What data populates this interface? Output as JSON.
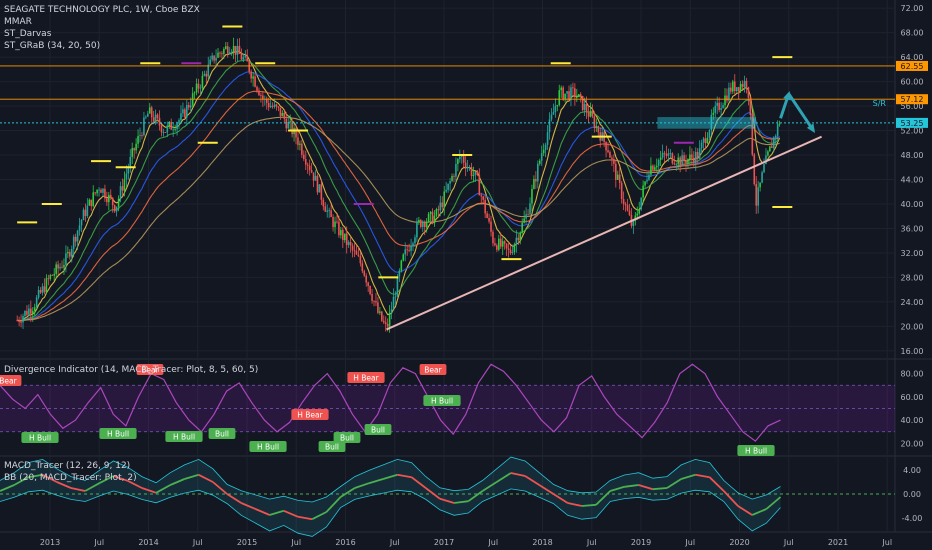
{
  "main_legend": {
    "title": "SEAGATE TECHNOLOGY PLC, 1W, Cboe BZX",
    "ind1": "MMAR",
    "ind2": "ST_Darvas",
    "ind3": "ST_GRaB (34, 20, 50)"
  },
  "div_legend": {
    "title": "Divergence Indicator (14, MACD_Tracer: Plot, 8, 5, 60, 5)"
  },
  "macd_legend": {
    "line1": "MACD_Tracer (12, 26, 9, 12)",
    "line2": "BB (20, MACD_Tracer: Plot, 2)"
  },
  "colors": {
    "background": "#131722",
    "candle_up": "#26a69a",
    "candle_up_bright": "#2ecc40",
    "candle_down": "#ef5350",
    "darvas_box": "#ffeb3b",
    "darvas_purple": "#9c27b0",
    "hline_orange": "#ff9800",
    "hline_teal": "#26c6da",
    "trendline": "#e8b5b5",
    "arrow": "#2fa3b4",
    "div_line": "#ab47bc",
    "bull_label": "#4caf50",
    "bear_label": "#ef5350",
    "macd_zero": "#4caf50"
  },
  "chart_data": [
    {
      "type": "candlestick",
      "name_panel": "price",
      "title": "SEAGATE TECHNOLOGY PLC, 1W, Cboe BZX",
      "x_ticks": [
        "2013",
        "Jul",
        "2014",
        "Jul",
        "2015",
        "Jul",
        "2016",
        "Jul",
        "2017",
        "Jul",
        "2018",
        "Jul",
        "2019",
        "Jul",
        "2020",
        "Jul",
        "2021",
        "Jul"
      ],
      "y_ticks": [
        16,
        20,
        24,
        28,
        32,
        36,
        40,
        44,
        48,
        52,
        56,
        60,
        64,
        68,
        72
      ],
      "ylim": [
        15,
        73
      ],
      "price_path": [
        [
          "2012-09",
          21
        ],
        [
          "2012-11",
          23.5
        ],
        [
          "2013-01",
          28
        ],
        [
          "2013-03",
          31
        ],
        [
          "2013-05",
          38
        ],
        [
          "2013-07",
          43
        ],
        [
          "2013-09",
          39.5
        ],
        [
          "2013-11",
          48
        ],
        [
          "2014-01",
          55
        ],
        [
          "2014-03",
          52
        ],
        [
          "2014-05",
          54
        ],
        [
          "2014-07",
          59
        ],
        [
          "2014-09",
          64
        ],
        [
          "2014-11",
          66
        ],
        [
          "2015-01",
          63
        ],
        [
          "2015-03",
          57
        ],
        [
          "2015-05",
          55
        ],
        [
          "2015-07",
          51
        ],
        [
          "2015-09",
          45
        ],
        [
          "2015-11",
          38
        ],
        [
          "2016-01",
          34
        ],
        [
          "2016-03",
          30
        ],
        [
          "2016-05",
          22
        ],
        [
          "2016-06",
          19.5
        ],
        [
          "2016-08",
          31
        ],
        [
          "2016-10",
          37
        ],
        [
          "2016-12",
          38
        ],
        [
          "2017-01",
          41
        ],
        [
          "2017-03",
          48
        ],
        [
          "2017-04",
          46
        ],
        [
          "2017-05",
          44
        ],
        [
          "2017-07",
          34
        ],
        [
          "2017-09",
          32
        ],
        [
          "2017-11",
          38
        ],
        [
          "2018-01",
          49
        ],
        [
          "2018-03",
          58
        ],
        [
          "2018-05",
          58
        ],
        [
          "2018-07",
          54
        ],
        [
          "2018-09",
          49
        ],
        [
          "2018-11",
          40
        ],
        [
          "2018-12",
          36
        ],
        [
          "2019-02",
          46
        ],
        [
          "2019-04",
          48
        ],
        [
          "2019-06",
          47
        ],
        [
          "2019-08",
          48
        ],
        [
          "2019-10",
          55
        ],
        [
          "2019-12",
          59
        ],
        [
          "2020-02",
          60
        ],
        [
          "2020-03",
          40
        ],
        [
          "2020-04",
          46
        ],
        [
          "2020-06",
          54
        ]
      ],
      "horizontal_levels": {
        "orange_high": 62.55,
        "orange_mid": 57.12,
        "teal": 53.25
      },
      "axis_labels": {
        "orange_high": "62.55",
        "orange_mid": "57.12",
        "teal": "53.25",
        "sr_label": "S/R"
      },
      "trendline": [
        [
          "2016-06",
          19.5
        ],
        [
          "2020-11",
          51
        ]
      ],
      "darvas_levels": [
        [
          "2012-09",
          37
        ],
        [
          "2012-12",
          40
        ],
        [
          "2013-06",
          47
        ],
        [
          "2013-09",
          46
        ],
        [
          "2013-12",
          63
        ],
        [
          "2014-05",
          63
        ],
        [
          "2014-07",
          50
        ],
        [
          "2014-10",
          69
        ],
        [
          "2015-02",
          63
        ],
        [
          "2015-06",
          52
        ],
        [
          "2016-02",
          40
        ],
        [
          "2016-05",
          28
        ],
        [
          "2017-02",
          48
        ],
        [
          "2017-08",
          31
        ],
        [
          "2018-02",
          63
        ],
        [
          "2018-07",
          51
        ],
        [
          "2019-05",
          50
        ],
        [
          "2020-05",
          64
        ],
        [
          "2020-05b",
          39.5
        ]
      ],
      "arrows": [
        [
          "2020-06",
          54
        ],
        [
          "2020-07",
          58
        ],
        [
          "2020-10",
          52
        ]
      ]
    },
    {
      "type": "line",
      "name_panel": "divergence",
      "title": "Divergence Indicator (14, MACD_Tracer: Plot, 8, 5, 60, 5)",
      "y_ticks": [
        20,
        40,
        60,
        80
      ],
      "ylim": [
        10,
        90
      ],
      "bands": [
        30,
        70
      ],
      "labels": [
        "Bear",
        "H Bull",
        "H Bull",
        "Bear",
        "H Bull",
        "Bull",
        "H Bull",
        "H Bear",
        "Bull",
        "H Bear",
        "Bull",
        "Bull",
        "Bear",
        "H Bull",
        "H Bull"
      ],
      "series_values": [
        70,
        58,
        50,
        62,
        45,
        33,
        40,
        55,
        68,
        45,
        35,
        60,
        80,
        75,
        55,
        40,
        30,
        45,
        65,
        72,
        55,
        40,
        30,
        38,
        55,
        70,
        80,
        65,
        45,
        30,
        45,
        72,
        85,
        80,
        60,
        40,
        28,
        45,
        72,
        88,
        82,
        70,
        55,
        40,
        30,
        42,
        70,
        78,
        60,
        45,
        35,
        25,
        38,
        55,
        80,
        88,
        80,
        60,
        45,
        30,
        22,
        35,
        40
      ]
    },
    {
      "type": "line",
      "name_panel": "macd",
      "title": "MACD_Tracer (12, 26, 9, 12)",
      "y_ticks": [
        "4.00",
        "0.00",
        "-4.00"
      ],
      "ylim": [
        -6,
        6
      ],
      "series_values": [
        0.5,
        1.5,
        2.8,
        3.2,
        2.0,
        1.0,
        0.5,
        1.8,
        3.0,
        2.2,
        1.0,
        0.2,
        1.5,
        2.5,
        3.2,
        2.0,
        0.0,
        -1.5,
        -2.5,
        -3.5,
        -2.8,
        -3.8,
        -4.2,
        -3.0,
        -0.5,
        1.0,
        1.8,
        2.5,
        3.2,
        2.8,
        1.0,
        -0.8,
        -1.5,
        -1.2,
        0.5,
        2.0,
        3.5,
        3.0,
        1.5,
        0.0,
        -1.5,
        -2.0,
        -1.8,
        0.5,
        1.2,
        1.5,
        0.8,
        1.0,
        2.5,
        3.2,
        2.8,
        0.5,
        -2.0,
        -3.5,
        -2.5,
        -0.5
      ]
    }
  ]
}
